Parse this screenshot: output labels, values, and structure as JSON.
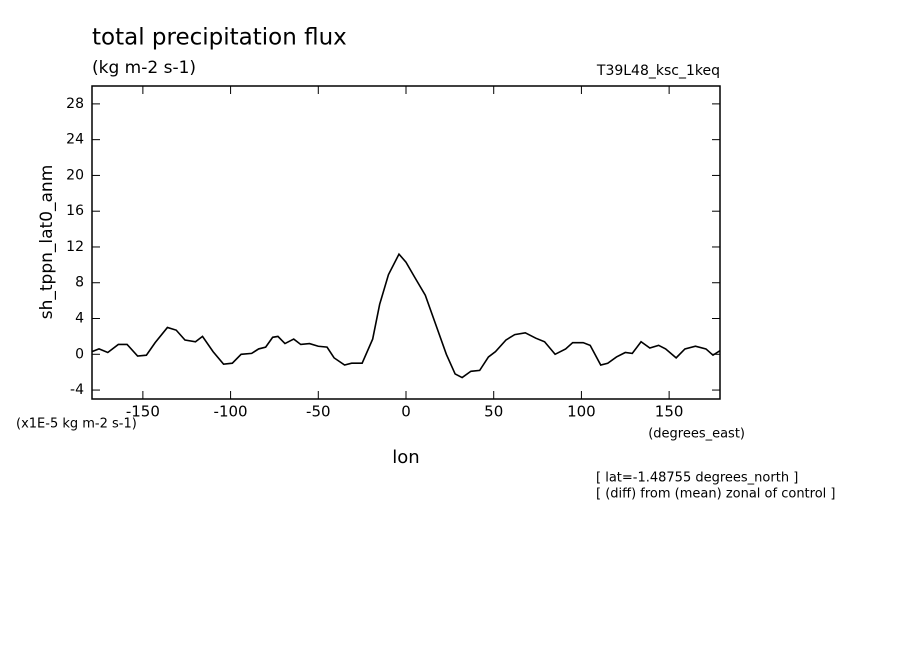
{
  "chart_data": {
    "type": "line",
    "title": "total precipitation flux",
    "subtitle": "(kg m-2 s-1)",
    "dataset_label": "T39L48_ksc_1keq",
    "y_label": "sh_tppn_lat0_anm",
    "y_units": "(x1E-5 kg m-2 s-1)",
    "x_label": "lon",
    "x_units": "(degrees_east)",
    "notes": [
      "[ lat=-1.48755 degrees_north ]",
      "[ (diff) from (mean) zonal of control ]"
    ],
    "xlim": [
      -179,
      179
    ],
    "ylim": [
      -5,
      30
    ],
    "xticks": [
      -150,
      -100,
      -50,
      0,
      50,
      100,
      150
    ],
    "yticks": [
      -4,
      0,
      4,
      8,
      12,
      16,
      20,
      24,
      28
    ],
    "series": [
      {
        "color": "#000000",
        "x": [
          -179,
          -175,
          -170,
          -164,
          -159,
          -153,
          -148,
          -143,
          -136,
          -131,
          -126,
          -120,
          -116,
          -110,
          -104,
          -99,
          -94,
          -88,
          -84,
          -80,
          -76,
          -73,
          -69,
          -64,
          -60,
          -55,
          -50,
          -45,
          -41,
          -35,
          -31,
          -25,
          -19,
          -15,
          -10,
          -4,
          0,
          5,
          11,
          17,
          23,
          28,
          32,
          37,
          42,
          47,
          51,
          57,
          62,
          68,
          74,
          79,
          85,
          91,
          95,
          101,
          105,
          111,
          115,
          120,
          125,
          129,
          134,
          139,
          144,
          148,
          154,
          159,
          165,
          171,
          175,
          179
        ],
        "values": [
          0.3,
          0.6,
          0.2,
          1.1,
          1.1,
          -0.2,
          -0.1,
          1.3,
          3.0,
          2.7,
          1.6,
          1.4,
          2.0,
          0.3,
          -1.1,
          -1.0,
          0,
          0.1,
          0.6,
          0.8,
          1.9,
          2.0,
          1.2,
          1.7,
          1.1,
          1.2,
          0.9,
          0.8,
          -0.4,
          -1.2,
          -1.0,
          -1.0,
          1.7,
          5.6,
          8.9,
          11.2,
          10.3,
          8.6,
          6.6,
          3.3,
          0,
          -2.2,
          -2.6,
          -1.9,
          -1.8,
          -0.3,
          0.3,
          1.6,
          2.2,
          2.4,
          1.8,
          1.4,
          0,
          0.6,
          1.3,
          1.3,
          1.0,
          -1.2,
          -1.0,
          -0.3,
          0.2,
          0.1,
          1.4,
          0.7,
          1.0,
          0.6,
          -0.4,
          0.6,
          0.9,
          0.6,
          -0.1,
          0.4
        ]
      }
    ]
  }
}
